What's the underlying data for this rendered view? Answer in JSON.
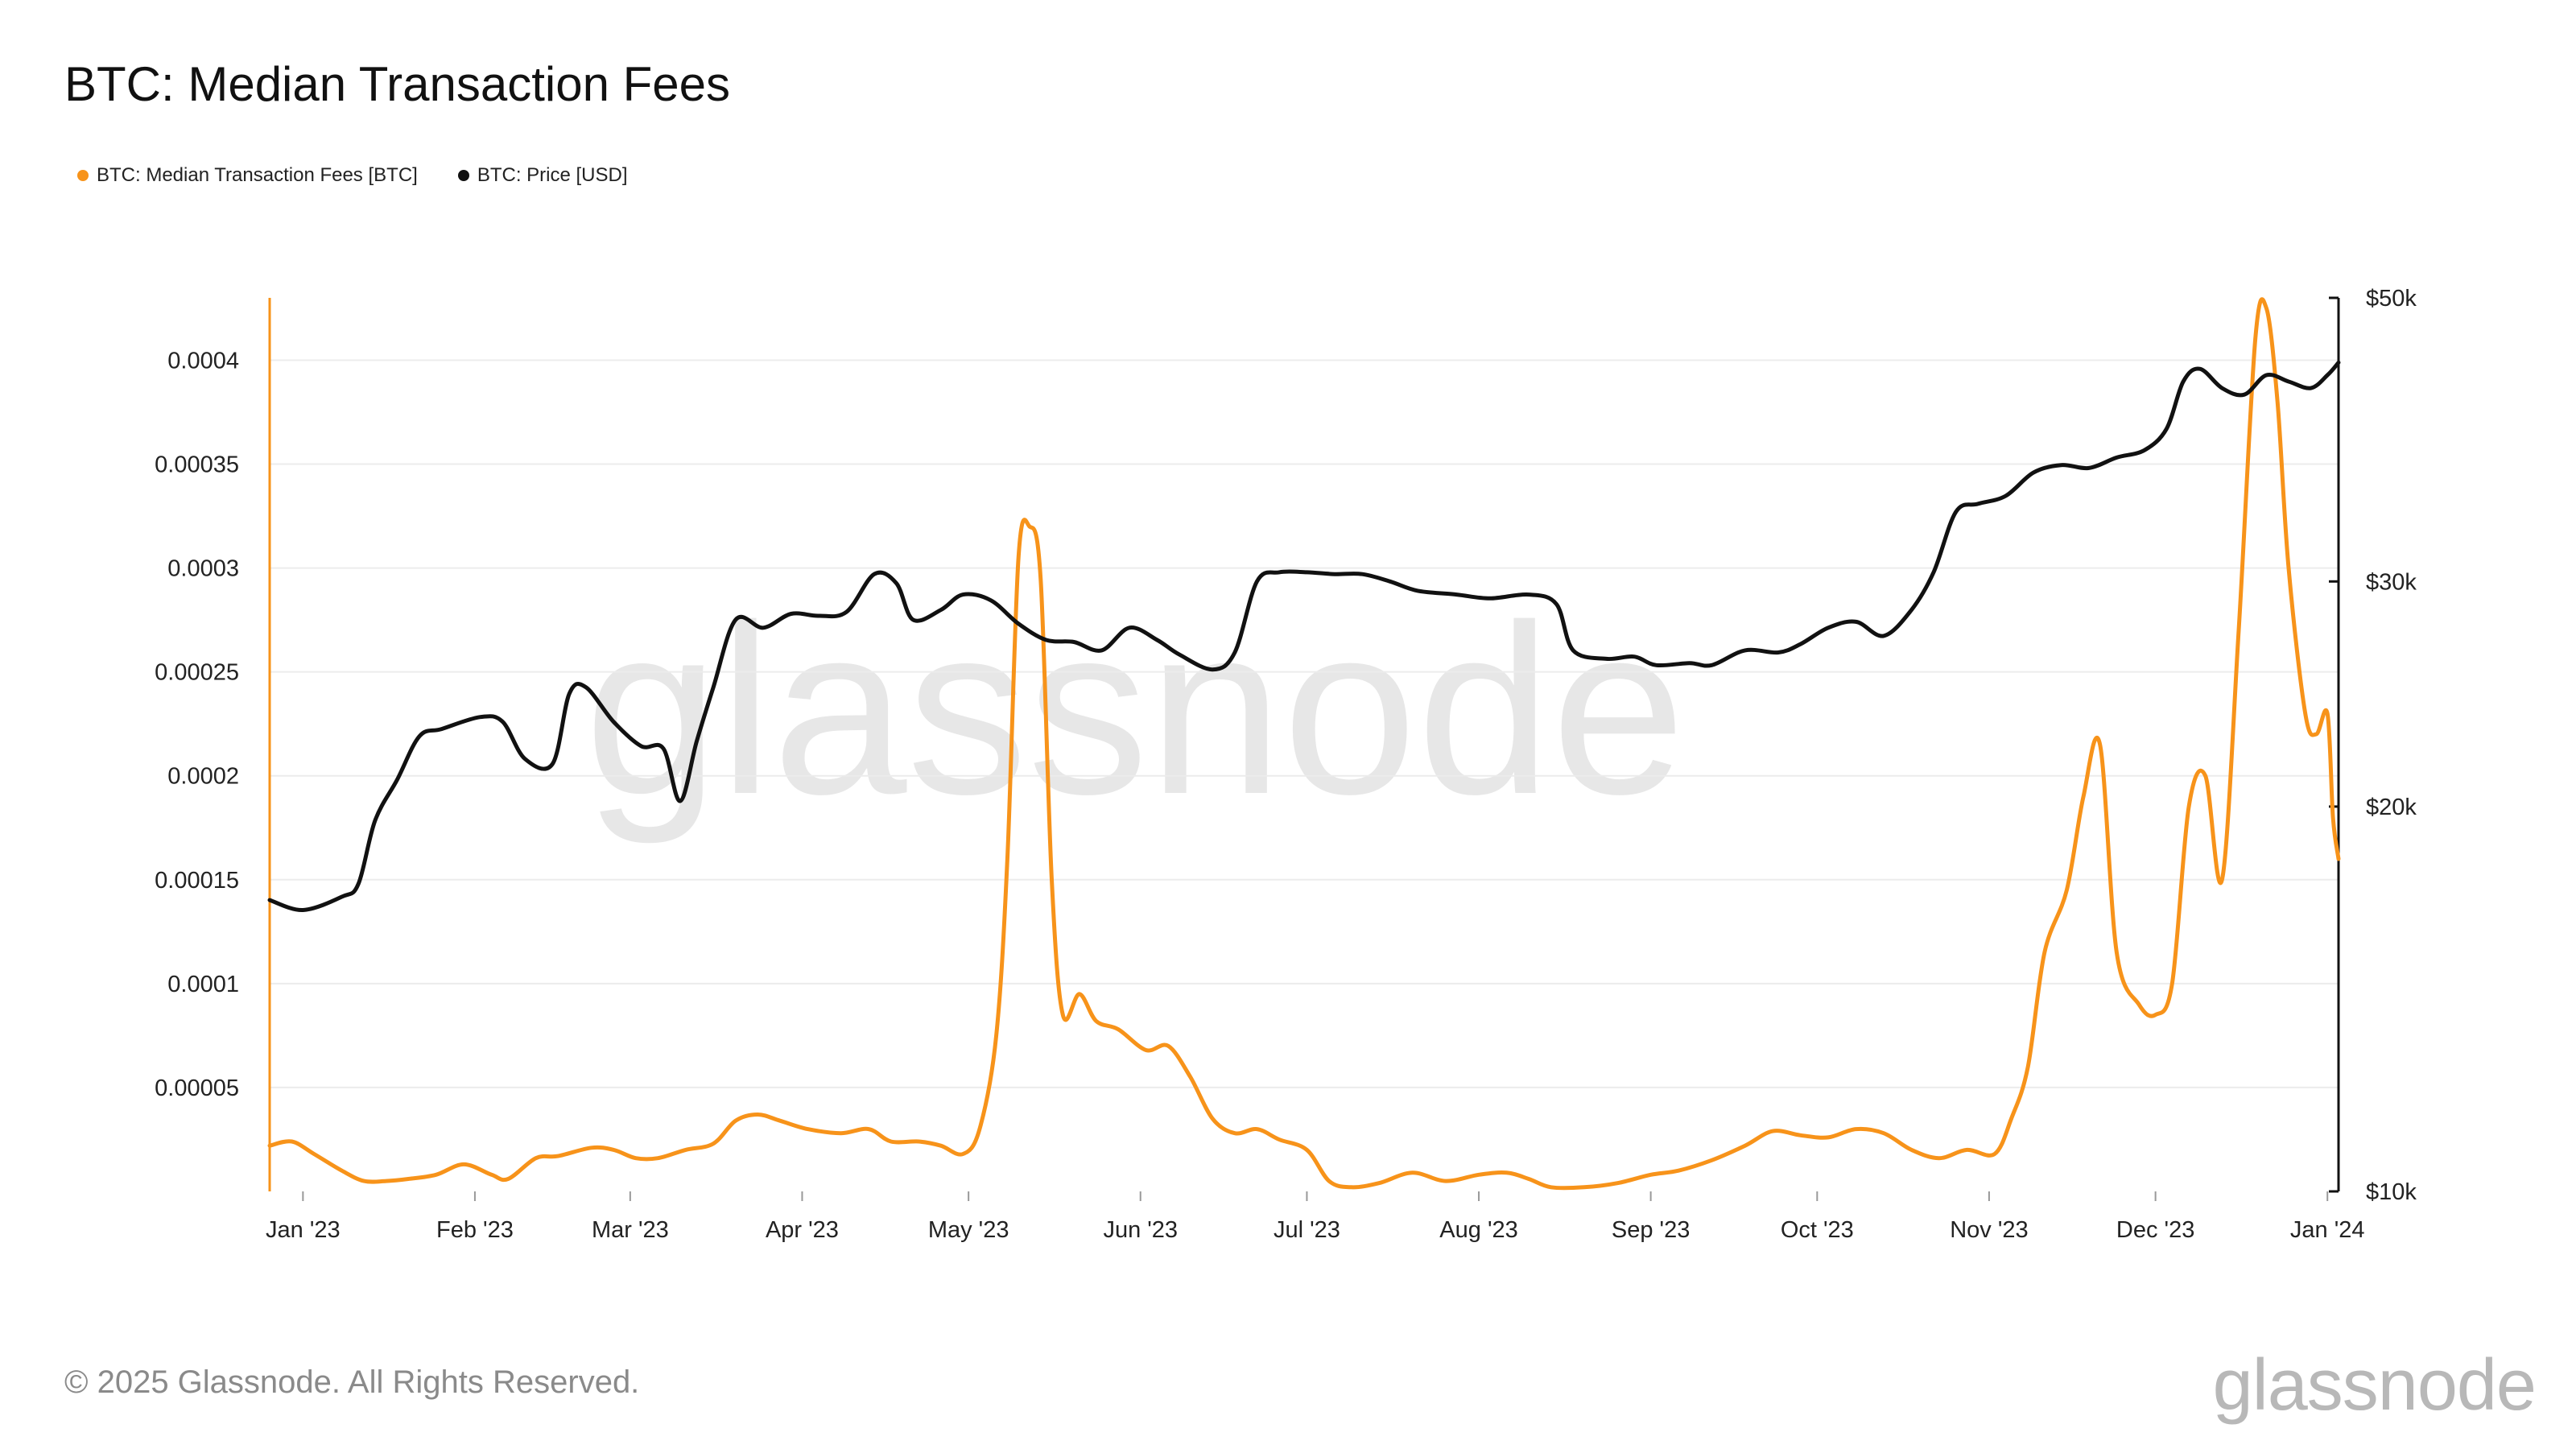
{
  "title": "BTC: Median Transaction Fees",
  "legend": [
    {
      "label": "BTC: Median Transaction Fees [BTC]",
      "color": "#f7931a"
    },
    {
      "label": "BTC: Price [USD]",
      "color": "#111111"
    }
  ],
  "watermark": "glassnode",
  "footer": {
    "copyright": "© 2025 Glassnode. All Rights Reserved.",
    "logo": "glassnode"
  },
  "chart_data": {
    "type": "line",
    "title": "BTC: Median Transaction Fees",
    "x_axis": {
      "type": "date",
      "range": [
        "2022-12-26",
        "2024-01-03"
      ],
      "ticks": [
        {
          "date": "2023-01-01",
          "label": "Jan '23"
        },
        {
          "date": "2023-02-01",
          "label": "Feb '23"
        },
        {
          "date": "2023-03-01",
          "label": "Mar '23"
        },
        {
          "date": "2023-04-01",
          "label": "Apr '23"
        },
        {
          "date": "2023-05-01",
          "label": "May '23"
        },
        {
          "date": "2023-06-01",
          "label": "Jun '23"
        },
        {
          "date": "2023-07-01",
          "label": "Jul '23"
        },
        {
          "date": "2023-08-01",
          "label": "Aug '23"
        },
        {
          "date": "2023-09-01",
          "label": "Sep '23"
        },
        {
          "date": "2023-10-01",
          "label": "Oct '23"
        },
        {
          "date": "2023-11-01",
          "label": "Nov '23"
        },
        {
          "date": "2023-12-01",
          "label": "Dec '23"
        },
        {
          "date": "2024-01-01",
          "label": "Jan '24"
        }
      ]
    },
    "y_left": {
      "scale": "linear",
      "range": [
        0.0,
        0.00043
      ],
      "ticks": [
        {
          "value": 5e-05,
          "label": "0.00005"
        },
        {
          "value": 0.0001,
          "label": "0.0001"
        },
        {
          "value": 0.00015,
          "label": "0.00015"
        },
        {
          "value": 0.0002,
          "label": "0.0002"
        },
        {
          "value": 0.00025,
          "label": "0.00025"
        },
        {
          "value": 0.0003,
          "label": "0.0003"
        },
        {
          "value": 0.00035,
          "label": "0.00035"
        },
        {
          "value": 0.0004,
          "label": "0.0004"
        }
      ]
    },
    "y_right": {
      "scale": "log",
      "range": [
        10000,
        50000
      ],
      "ticks": [
        {
          "value": 10000,
          "label": "$10k"
        },
        {
          "value": 20000,
          "label": "$20k"
        },
        {
          "value": 30000,
          "label": "$30k"
        },
        {
          "value": 50000,
          "label": "$50k"
        }
      ]
    },
    "grid": true,
    "legend_position": "top-left",
    "series": [
      {
        "name": "BTC: Median Transaction Fees [BTC]",
        "axis": "left",
        "color": "#f7931a",
        "points": [
          [
            "2022-12-26",
            2.2e-05
          ],
          [
            "2022-12-30",
            2.4e-05
          ],
          [
            "2023-01-03",
            1.8e-05
          ],
          [
            "2023-01-08",
            1e-05
          ],
          [
            "2023-01-12",
            5e-06
          ],
          [
            "2023-01-16",
            5e-06
          ],
          [
            "2023-01-20",
            6e-06
          ],
          [
            "2023-01-25",
            8e-06
          ],
          [
            "2023-01-30",
            1.3e-05
          ],
          [
            "2023-02-04",
            8e-06
          ],
          [
            "2023-02-07",
            6e-06
          ],
          [
            "2023-02-12",
            1.6e-05
          ],
          [
            "2023-02-16",
            1.7e-05
          ],
          [
            "2023-02-22",
            2.1e-05
          ],
          [
            "2023-02-26",
            2e-05
          ],
          [
            "2023-03-02",
            1.6e-05
          ],
          [
            "2023-03-06",
            1.6e-05
          ],
          [
            "2023-03-11",
            2e-05
          ],
          [
            "2023-03-16",
            2.3e-05
          ],
          [
            "2023-03-20",
            3.4e-05
          ],
          [
            "2023-03-24",
            3.7e-05
          ],
          [
            "2023-03-28",
            3.4e-05
          ],
          [
            "2023-04-02",
            3e-05
          ],
          [
            "2023-04-08",
            2.8e-05
          ],
          [
            "2023-04-13",
            3e-05
          ],
          [
            "2023-04-17",
            2.4e-05
          ],
          [
            "2023-04-22",
            2.4e-05
          ],
          [
            "2023-04-26",
            2.2e-05
          ],
          [
            "2023-04-30",
            1.8e-05
          ],
          [
            "2023-05-03",
            3e-05
          ],
          [
            "2023-05-06",
            7.5e-05
          ],
          [
            "2023-05-08",
            0.00016
          ],
          [
            "2023-05-10",
            0.000305
          ],
          [
            "2023-05-12",
            0.00032
          ],
          [
            "2023-05-14",
            0.000295
          ],
          [
            "2023-05-16",
            0.00015
          ],
          [
            "2023-05-18",
            8.5e-05
          ],
          [
            "2023-05-21",
            9.5e-05
          ],
          [
            "2023-05-24",
            8.2e-05
          ],
          [
            "2023-05-28",
            7.8e-05
          ],
          [
            "2023-06-02",
            6.8e-05
          ],
          [
            "2023-06-06",
            7e-05
          ],
          [
            "2023-06-10",
            5.5e-05
          ],
          [
            "2023-06-14",
            3.5e-05
          ],
          [
            "2023-06-18",
            2.8e-05
          ],
          [
            "2023-06-22",
            3e-05
          ],
          [
            "2023-06-26",
            2.5e-05
          ],
          [
            "2023-07-01",
            2e-05
          ],
          [
            "2023-07-05",
            5e-06
          ],
          [
            "2023-07-09",
            2e-06
          ],
          [
            "2023-07-14",
            4e-06
          ],
          [
            "2023-07-20",
            9e-06
          ],
          [
            "2023-07-26",
            5e-06
          ],
          [
            "2023-08-01",
            8e-06
          ],
          [
            "2023-08-06",
            9e-06
          ],
          [
            "2023-08-10",
            6e-06
          ],
          [
            "2023-08-14",
            2e-06
          ],
          [
            "2023-08-20",
            2e-06
          ],
          [
            "2023-08-26",
            4e-06
          ],
          [
            "2023-09-01",
            8e-06
          ],
          [
            "2023-09-06",
            1e-05
          ],
          [
            "2023-09-12",
            1.5e-05
          ],
          [
            "2023-09-18",
            2.2e-05
          ],
          [
            "2023-09-23",
            2.9e-05
          ],
          [
            "2023-09-28",
            2.7e-05
          ],
          [
            "2023-10-03",
            2.6e-05
          ],
          [
            "2023-10-08",
            3e-05
          ],
          [
            "2023-10-13",
            2.8e-05
          ],
          [
            "2023-10-18",
            2e-05
          ],
          [
            "2023-10-23",
            1.6e-05
          ],
          [
            "2023-10-28",
            2e-05
          ],
          [
            "2023-11-02",
            1.8e-05
          ],
          [
            "2023-11-05",
            3.5e-05
          ],
          [
            "2023-11-08",
            6e-05
          ],
          [
            "2023-11-11",
            0.000115
          ],
          [
            "2023-11-15",
            0.000145
          ],
          [
            "2023-11-18",
            0.00019
          ],
          [
            "2023-11-21",
            0.000215
          ],
          [
            "2023-11-24",
            0.000115
          ],
          [
            "2023-11-28",
            9e-05
          ],
          [
            "2023-12-01",
            8.5e-05
          ],
          [
            "2023-12-04",
            0.0001
          ],
          [
            "2023-12-07",
            0.000185
          ],
          [
            "2023-12-10",
            0.0002
          ],
          [
            "2023-12-13",
            0.00015
          ],
          [
            "2023-12-16",
            0.00027
          ],
          [
            "2023-12-19",
            0.00041
          ],
          [
            "2023-12-21",
            0.000425
          ],
          [
            "2023-12-23",
            0.00038
          ],
          [
            "2023-12-25",
            0.0003
          ],
          [
            "2023-12-28",
            0.00023
          ],
          [
            "2023-12-30",
            0.00022
          ],
          [
            "2024-01-01",
            0.00023
          ],
          [
            "2024-01-02",
            0.00018
          ],
          [
            "2024-01-03",
            0.00016
          ]
        ]
      },
      {
        "name": "BTC: Price [USD]",
        "axis": "right",
        "color": "#111111",
        "points": [
          [
            "2022-12-26",
            16900
          ],
          [
            "2023-01-01",
            16600
          ],
          [
            "2023-01-08",
            17000
          ],
          [
            "2023-01-11",
            17400
          ],
          [
            "2023-01-14",
            19500
          ],
          [
            "2023-01-18",
            21000
          ],
          [
            "2023-01-22",
            22700
          ],
          [
            "2023-01-26",
            23000
          ],
          [
            "2023-02-02",
            23500
          ],
          [
            "2023-02-06",
            23300
          ],
          [
            "2023-02-10",
            21800
          ],
          [
            "2023-02-15",
            21600
          ],
          [
            "2023-02-18",
            24500
          ],
          [
            "2023-02-21",
            24800
          ],
          [
            "2023-02-26",
            23300
          ],
          [
            "2023-03-03",
            22300
          ],
          [
            "2023-03-07",
            22200
          ],
          [
            "2023-03-10",
            20200
          ],
          [
            "2023-03-13",
            22500
          ],
          [
            "2023-03-16",
            24800
          ],
          [
            "2023-03-20",
            28000
          ],
          [
            "2023-03-25",
            27600
          ],
          [
            "2023-03-30",
            28300
          ],
          [
            "2023-04-04",
            28200
          ],
          [
            "2023-04-09",
            28400
          ],
          [
            "2023-04-14",
            30400
          ],
          [
            "2023-04-18",
            29900
          ],
          [
            "2023-04-21",
            28000
          ],
          [
            "2023-04-26",
            28500
          ],
          [
            "2023-04-30",
            29300
          ],
          [
            "2023-05-05",
            29000
          ],
          [
            "2023-05-10",
            27800
          ],
          [
            "2023-05-15",
            27000
          ],
          [
            "2023-05-20",
            26900
          ],
          [
            "2023-05-25",
            26500
          ],
          [
            "2023-05-30",
            27600
          ],
          [
            "2023-06-04",
            27000
          ],
          [
            "2023-06-08",
            26300
          ],
          [
            "2023-06-14",
            25600
          ],
          [
            "2023-06-18",
            26400
          ],
          [
            "2023-06-22",
            30000
          ],
          [
            "2023-06-26",
            30500
          ],
          [
            "2023-07-01",
            30500
          ],
          [
            "2023-07-06",
            30400
          ],
          [
            "2023-07-11",
            30400
          ],
          [
            "2023-07-16",
            30000
          ],
          [
            "2023-07-21",
            29500
          ],
          [
            "2023-07-28",
            29300
          ],
          [
            "2023-08-03",
            29100
          ],
          [
            "2023-08-10",
            29300
          ],
          [
            "2023-08-15",
            28800
          ],
          [
            "2023-08-18",
            26500
          ],
          [
            "2023-08-24",
            26100
          ],
          [
            "2023-08-29",
            26200
          ],
          [
            "2023-09-02",
            25800
          ],
          [
            "2023-09-08",
            25900
          ],
          [
            "2023-09-12",
            25800
          ],
          [
            "2023-09-18",
            26500
          ],
          [
            "2023-09-24",
            26400
          ],
          [
            "2023-09-28",
            26800
          ],
          [
            "2023-10-03",
            27600
          ],
          [
            "2023-10-08",
            27900
          ],
          [
            "2023-10-13",
            27200
          ],
          [
            "2023-10-18",
            28500
          ],
          [
            "2023-10-22",
            30500
          ],
          [
            "2023-10-26",
            34000
          ],
          [
            "2023-10-30",
            34500
          ],
          [
            "2023-11-04",
            35000
          ],
          [
            "2023-11-09",
            36500
          ],
          [
            "2023-11-14",
            37000
          ],
          [
            "2023-11-19",
            36800
          ],
          [
            "2023-11-24",
            37500
          ],
          [
            "2023-11-29",
            38000
          ],
          [
            "2023-12-03",
            39500
          ],
          [
            "2023-12-06",
            43000
          ],
          [
            "2023-12-09",
            44000
          ],
          [
            "2023-12-13",
            42500
          ],
          [
            "2023-12-17",
            42000
          ],
          [
            "2023-12-21",
            43500
          ],
          [
            "2023-12-25",
            43000
          ],
          [
            "2023-12-29",
            42500
          ],
          [
            "2024-01-01",
            43500
          ],
          [
            "2024-01-03",
            44500
          ]
        ]
      }
    ]
  }
}
